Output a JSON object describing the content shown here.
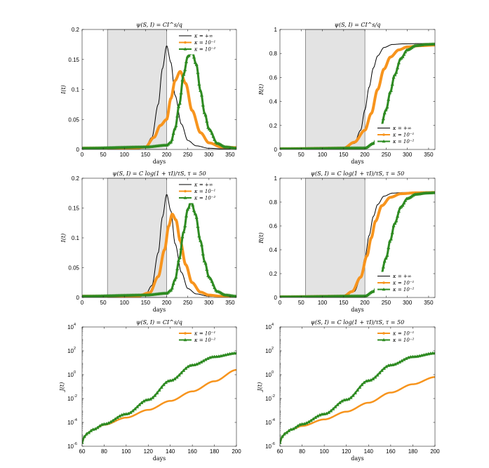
{
  "chart_data": [
    {
      "type": "line",
      "title": "ψ(S, I) = CI^s/q",
      "xlabel": "days",
      "ylabel": "I(t)",
      "xlim": [
        0,
        365
      ],
      "ylim": [
        0,
        0.2
      ],
      "xticks": [
        0,
        50,
        100,
        150,
        200,
        250,
        300,
        350
      ],
      "yticks": [
        0,
        0.05,
        0.1,
        0.15,
        0.2
      ],
      "ytick_labels": [
        "0",
        "0.05",
        "0.1",
        "0.15",
        "0.2"
      ],
      "shaded_interval": [
        60,
        200
      ],
      "legend_position": "top-right",
      "series": [
        {
          "name": "κ = +∞",
          "color": "#000000",
          "marker": "none",
          "width": 1,
          "x": [
            0,
            120,
            150,
            165,
            180,
            190,
            200,
            210,
            220,
            235,
            250,
            270,
            300,
            330,
            365
          ],
          "y": [
            0.002,
            0.002,
            0.005,
            0.02,
            0.075,
            0.135,
            0.173,
            0.145,
            0.09,
            0.042,
            0.015,
            0.006,
            0.002,
            0.001,
            0.001
          ]
        },
        {
          "name": "κ = 10⁻¹",
          "color": "#f7941d",
          "marker": "none",
          "width": 4,
          "x": [
            0,
            120,
            150,
            170,
            185,
            200,
            210,
            220,
            232,
            245,
            260,
            280,
            300,
            330,
            365
          ],
          "y": [
            0.002,
            0.002,
            0.004,
            0.02,
            0.04,
            0.05,
            0.085,
            0.115,
            0.13,
            0.11,
            0.065,
            0.028,
            0.011,
            0.004,
            0.003
          ]
        },
        {
          "name": "κ = 10⁻²",
          "color": "#2e8b22",
          "marker": "triangle",
          "width": 3,
          "x": [
            0,
            150,
            200,
            210,
            220,
            230,
            240,
            250,
            260,
            270,
            280,
            290,
            300,
            320,
            340,
            365
          ],
          "y": [
            0.002,
            0.004,
            0.007,
            0.012,
            0.035,
            0.075,
            0.125,
            0.155,
            0.163,
            0.142,
            0.098,
            0.06,
            0.034,
            0.01,
            0.004,
            0.002
          ]
        }
      ]
    },
    {
      "type": "line",
      "title": "ψ(S, I) = CI^s/q",
      "xlabel": "days",
      "ylabel": "R(t)",
      "xlim": [
        0,
        365
      ],
      "ylim": [
        0,
        1
      ],
      "xticks": [
        0,
        50,
        100,
        150,
        200,
        250,
        300,
        350
      ],
      "yticks": [
        0,
        0.2,
        0.4,
        0.6,
        0.8,
        1
      ],
      "ytick_labels": [
        "0",
        "0.2",
        "0.4",
        "0.6",
        "0.8",
        "1"
      ],
      "shaded_interval": [
        60,
        200
      ],
      "legend_position": "bottom-right",
      "series": [
        {
          "name": "κ = +∞",
          "color": "#000000",
          "marker": "none",
          "width": 1,
          "x": [
            0,
            150,
            175,
            190,
            200,
            210,
            220,
            230,
            245,
            265,
            290,
            320,
            365
          ],
          "y": [
            0.005,
            0.01,
            0.05,
            0.16,
            0.33,
            0.52,
            0.68,
            0.78,
            0.85,
            0.875,
            0.88,
            0.882,
            0.882
          ]
        },
        {
          "name": "κ = 10⁻¹",
          "color": "#f7941d",
          "marker": "none",
          "width": 4,
          "x": [
            0,
            150,
            175,
            200,
            215,
            230,
            245,
            260,
            280,
            300,
            330,
            365
          ],
          "y": [
            0.005,
            0.01,
            0.06,
            0.16,
            0.3,
            0.5,
            0.67,
            0.77,
            0.83,
            0.855,
            0.865,
            0.87
          ]
        },
        {
          "name": "κ = 10⁻²",
          "color": "#2e8b22",
          "marker": "triangle",
          "width": 3,
          "x": [
            0,
            200,
            220,
            235,
            250,
            260,
            270,
            285,
            300,
            320,
            345,
            365
          ],
          "y": [
            0.005,
            0.012,
            0.05,
            0.15,
            0.33,
            0.48,
            0.62,
            0.76,
            0.83,
            0.865,
            0.875,
            0.878
          ]
        }
      ]
    },
    {
      "type": "line",
      "title": "ψ(S, I) = C log(1 + τI)/τS, τ = 50",
      "xlabel": "days",
      "ylabel": "I(t)",
      "xlim": [
        0,
        365
      ],
      "ylim": [
        0,
        0.2
      ],
      "xticks": [
        0,
        50,
        100,
        150,
        200,
        250,
        300,
        350
      ],
      "yticks": [
        0,
        0.05,
        0.1,
        0.15,
        0.2
      ],
      "ytick_labels": [
        "0",
        "0.05",
        "0.1",
        "0.15",
        "0.2"
      ],
      "shaded_interval": [
        60,
        200
      ],
      "legend_position": "top-right",
      "series": [
        {
          "name": "κ = +∞",
          "color": "#000000",
          "marker": "none",
          "width": 1,
          "x": [
            0,
            120,
            150,
            165,
            180,
            190,
            200,
            210,
            220,
            235,
            250,
            270,
            300,
            330,
            365
          ],
          "y": [
            0.002,
            0.002,
            0.005,
            0.02,
            0.075,
            0.135,
            0.173,
            0.145,
            0.09,
            0.042,
            0.015,
            0.006,
            0.002,
            0.001,
            0.001
          ]
        },
        {
          "name": "κ = 10⁻¹",
          "color": "#f7941d",
          "marker": "none",
          "width": 4,
          "x": [
            0,
            130,
            160,
            180,
            195,
            205,
            213,
            222,
            232,
            245,
            260,
            280,
            300,
            330,
            365
          ],
          "y": [
            0.002,
            0.002,
            0.008,
            0.035,
            0.08,
            0.12,
            0.14,
            0.13,
            0.095,
            0.055,
            0.025,
            0.009,
            0.004,
            0.002,
            0.001
          ]
        },
        {
          "name": "κ = 10⁻²",
          "color": "#2e8b22",
          "marker": "triangle",
          "width": 3,
          "x": [
            0,
            150,
            200,
            210,
            220,
            230,
            240,
            250,
            258,
            268,
            280,
            290,
            300,
            320,
            340,
            365
          ],
          "y": [
            0.002,
            0.004,
            0.007,
            0.012,
            0.03,
            0.065,
            0.11,
            0.148,
            0.161,
            0.14,
            0.095,
            0.06,
            0.034,
            0.01,
            0.004,
            0.002
          ]
        }
      ]
    },
    {
      "type": "line",
      "title": "ψ(S, I) = C log(1 + τI)/τS, τ = 50",
      "xlabel": "days",
      "ylabel": "R(t)",
      "xlim": [
        0,
        365
      ],
      "ylim": [
        0,
        1
      ],
      "xticks": [
        0,
        50,
        100,
        150,
        200,
        250,
        300,
        350
      ],
      "yticks": [
        0,
        0.2,
        0.4,
        0.6,
        0.8,
        1
      ],
      "ytick_labels": [
        "0",
        "0.2",
        "0.4",
        "0.6",
        "0.8",
        "1"
      ],
      "shaded_interval": [
        60,
        200
      ],
      "legend_position": "bottom-right",
      "series": [
        {
          "name": "κ = +∞",
          "color": "#000000",
          "marker": "none",
          "width": 1,
          "x": [
            0,
            150,
            175,
            190,
            200,
            210,
            220,
            230,
            245,
            265,
            290,
            320,
            365
          ],
          "y": [
            0.005,
            0.01,
            0.05,
            0.16,
            0.33,
            0.52,
            0.68,
            0.78,
            0.85,
            0.875,
            0.88,
            0.882,
            0.882
          ]
        },
        {
          "name": "κ = 10⁻¹",
          "color": "#f7941d",
          "marker": "none",
          "width": 4,
          "x": [
            0,
            150,
            170,
            190,
            205,
            215,
            225,
            240,
            260,
            285,
            320,
            365
          ],
          "y": [
            0.005,
            0.01,
            0.05,
            0.17,
            0.35,
            0.5,
            0.64,
            0.77,
            0.84,
            0.87,
            0.878,
            0.88
          ]
        },
        {
          "name": "κ = 10⁻²",
          "color": "#2e8b22",
          "marker": "triangle",
          "width": 3,
          "x": [
            0,
            200,
            220,
            235,
            250,
            260,
            270,
            285,
            300,
            320,
            345,
            365
          ],
          "y": [
            0.005,
            0.012,
            0.05,
            0.15,
            0.33,
            0.48,
            0.62,
            0.76,
            0.83,
            0.865,
            0.875,
            0.878
          ]
        }
      ]
    },
    {
      "type": "line",
      "title": "ψ(S, I) = CI^s/q",
      "xlabel": "days",
      "ylabel": "J(t)",
      "yscale": "log",
      "xlim": [
        60,
        200
      ],
      "ylim_exp": [
        -6,
        4
      ],
      "xticks": [
        60,
        80,
        100,
        120,
        140,
        160,
        180,
        200
      ],
      "yticks_exp": [
        -6,
        -4,
        -2,
        0,
        2,
        4
      ],
      "legend_position": "top-right",
      "series": [
        {
          "name": "κ = 10⁻¹",
          "color": "#f7941d",
          "marker": "none",
          "width": 2.5,
          "x": [
            60,
            62,
            65,
            70,
            80,
            100,
            120,
            140,
            160,
            180,
            200
          ],
          "log10y": [
            -5.7,
            -5.2,
            -4.9,
            -4.6,
            -4.2,
            -3.6,
            -2.95,
            -2.2,
            -1.4,
            -0.55,
            0.4
          ]
        },
        {
          "name": "κ = 10⁻²",
          "color": "#2e8b22",
          "marker": "triangle",
          "width": 2.5,
          "x": [
            60,
            62,
            65,
            70,
            80,
            100,
            120,
            140,
            160,
            180,
            200
          ],
          "log10y": [
            -5.7,
            -5.2,
            -4.9,
            -4.6,
            -4.15,
            -3.3,
            -2.1,
            -0.5,
            0.8,
            1.5,
            1.8
          ]
        }
      ]
    },
    {
      "type": "line",
      "title": "ψ(S, I) = C log(1 + τI)/τS, τ = 50",
      "xlabel": "days",
      "ylabel": "J(t)",
      "yscale": "log",
      "xlim": [
        60,
        200
      ],
      "ylim_exp": [
        -6,
        4
      ],
      "xticks": [
        60,
        80,
        100,
        120,
        140,
        160,
        180,
        200
      ],
      "yticks_exp": [
        -6,
        -4,
        -2,
        0,
        2,
        4
      ],
      "legend_position": "top-right",
      "series": [
        {
          "name": "κ = 10⁻¹",
          "color": "#f7941d",
          "marker": "none",
          "width": 2.5,
          "x": [
            60,
            62,
            65,
            70,
            80,
            100,
            120,
            140,
            160,
            180,
            200
          ],
          "log10y": [
            -5.7,
            -5.2,
            -4.9,
            -4.6,
            -4.3,
            -3.75,
            -3.1,
            -2.35,
            -1.5,
            -0.8,
            -0.2
          ]
        },
        {
          "name": "κ = 10⁻²",
          "color": "#2e8b22",
          "marker": "triangle",
          "width": 2.5,
          "x": [
            60,
            62,
            65,
            70,
            80,
            100,
            120,
            140,
            160,
            180,
            200
          ],
          "log10y": [
            -5.7,
            -5.2,
            -4.9,
            -4.6,
            -4.15,
            -3.3,
            -2.1,
            -0.5,
            0.8,
            1.5,
            1.8
          ]
        }
      ]
    }
  ]
}
